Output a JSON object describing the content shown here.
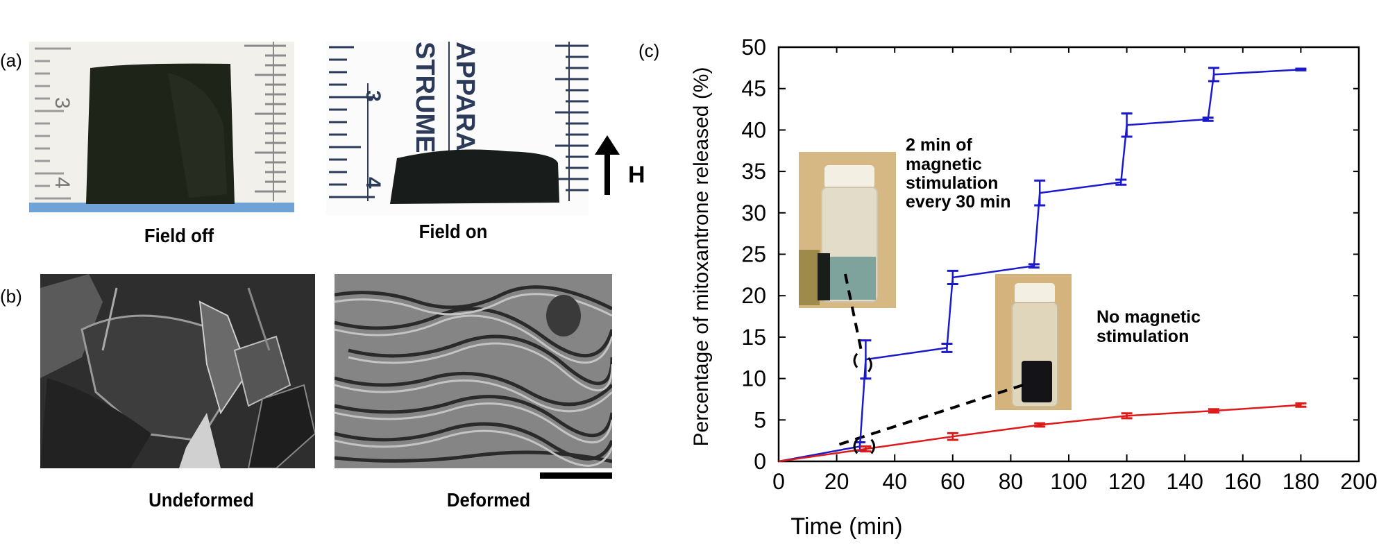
{
  "panels": {
    "a": {
      "label": "(a)",
      "left_caption": "Field off",
      "right_caption": "Field on",
      "field_arrow_label": "H",
      "ruler_left_numbers": [
        "3",
        "4"
      ],
      "ruler_right_numbers": [
        "3",
        "4"
      ],
      "ruler_right_text": [
        "APPARA",
        "STRUME"
      ]
    },
    "b": {
      "label": "(b)",
      "left_caption": "Undeformed",
      "right_caption": "Deformed"
    },
    "c": {
      "label": "(c)",
      "annotation_stim": [
        "2 min of",
        "magnetic",
        "stimulation",
        "every 30 min"
      ],
      "annotation_nostim": [
        "No magnetic",
        "stimulation"
      ]
    }
  },
  "chart_data": {
    "type": "line",
    "title": "",
    "xlabel": "Time (min)",
    "ylabel": "Percentage of mitoxantrone released (%)",
    "xlim": [
      0,
      200
    ],
    "ylim": [
      0,
      50
    ],
    "xticks": [
      0,
      20,
      40,
      60,
      80,
      100,
      120,
      140,
      160,
      180,
      200
    ],
    "yticks": [
      0,
      5,
      10,
      15,
      20,
      25,
      30,
      35,
      40,
      45,
      50
    ],
    "grid": false,
    "legend": "none (inline annotations)",
    "series": [
      {
        "name": "2 min of magnetic stimulation every 30 min",
        "color": "#1a1acc",
        "x": [
          0,
          28,
          30,
          58,
          60,
          88,
          90,
          118,
          120,
          148,
          150,
          180
        ],
        "y": [
          0,
          1.8,
          12.3,
          13.7,
          22.2,
          23.6,
          32.4,
          33.7,
          40.6,
          41.3,
          46.7,
          47.3
        ],
        "err": [
          0,
          0.5,
          2.3,
          0.5,
          0.8,
          0.2,
          1.5,
          0.3,
          1.4,
          0.2,
          0.8,
          0.1
        ]
      },
      {
        "name": "No magnetic stimulation",
        "color": "#dd1a1a",
        "x": [
          0,
          30,
          60,
          90,
          120,
          150,
          180
        ],
        "y": [
          0,
          1.5,
          3.0,
          4.4,
          5.5,
          6.1,
          6.8
        ],
        "err": [
          0,
          0.3,
          0.4,
          0.2,
          0.3,
          0.2,
          0.2
        ]
      }
    ]
  }
}
